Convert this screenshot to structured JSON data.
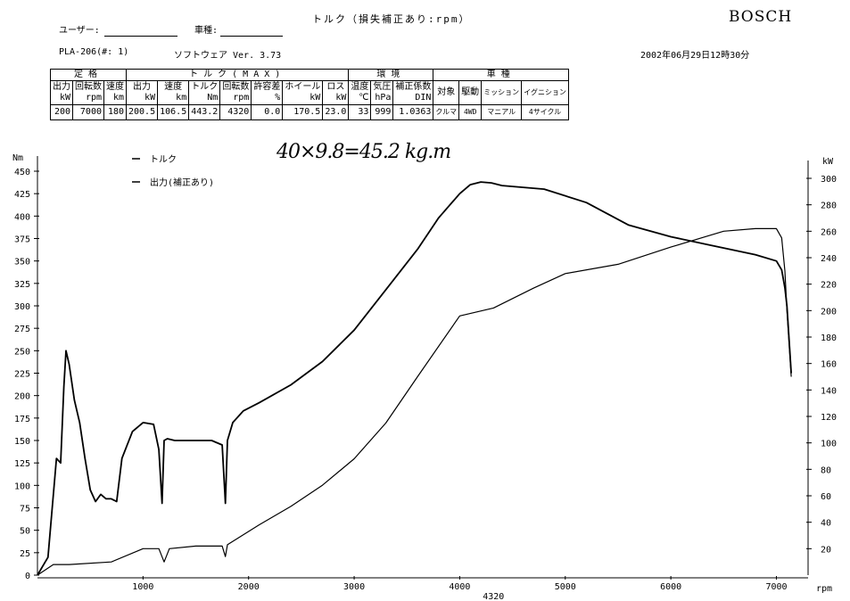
{
  "header": {
    "user_label": "ユーザー:",
    "vehicle_label": "車種:",
    "title": "トルク（損失補正あり:rpm）",
    "brand": "BOSCH",
    "model_code": "PLA-206(#: 1)",
    "software": "ソフトウェア Ver. 3.73",
    "datetime": "2002年06月29日12時30分"
  },
  "spec_table": {
    "groups": [
      "定格",
      "トルク(MAX)",
      "環境",
      "車種"
    ],
    "labels": [
      [
        "出力",
        "kW"
      ],
      [
        "回転数",
        "rpm"
      ],
      [
        "速度",
        "km"
      ],
      [
        "出力",
        "kW"
      ],
      [
        "速度",
        "km"
      ],
      [
        "トルク",
        "Nm"
      ],
      [
        "回転数",
        "rpm"
      ],
      [
        "許容差",
        "%"
      ],
      [
        "ホイール",
        "kW"
      ],
      [
        "ロス",
        "kW"
      ],
      [
        "温度",
        "℃"
      ],
      [
        "気圧",
        "hPa"
      ],
      [
        "補正係数",
        "DIN"
      ],
      [
        "対象",
        ""
      ],
      [
        "駆動",
        ""
      ],
      [
        "ミッション",
        ""
      ],
      [
        "イグニション",
        ""
      ]
    ],
    "values": [
      "200",
      "7000",
      "180",
      "200.5",
      "106.5",
      "443.2",
      "4320",
      "0.0",
      "170.5",
      "23.0",
      "33",
      "999",
      "1.0363",
      "クルマ",
      "4WD",
      "マニアル",
      "4サイクル"
    ]
  },
  "annotation": "40×9.8=45.2 kg.m",
  "chart_data": {
    "type": "line",
    "x_unit": "rpm",
    "left_axis": {
      "unit": "Nm",
      "ticks": [
        0,
        25,
        50,
        75,
        100,
        125,
        150,
        175,
        200,
        225,
        250,
        275,
        300,
        325,
        350,
        375,
        400,
        425,
        450
      ],
      "range": [
        0,
        450
      ]
    },
    "right_axis": {
      "unit": "kW",
      "ticks": [
        20,
        40,
        60,
        80,
        100,
        120,
        140,
        160,
        180,
        200,
        220,
        240,
        260,
        280,
        300
      ],
      "range": [
        0,
        310
      ]
    },
    "x_ticks": [
      1000,
      2000,
      3000,
      4000,
      5000,
      6000,
      7000
    ],
    "x_range": [
      0,
      7300
    ],
    "x_marker": "4320",
    "series": [
      {
        "name": "トルク",
        "axis": "left",
        "x": [
          0,
          100,
          180,
          220,
          250,
          270,
          300,
          350,
          400,
          450,
          500,
          550,
          600,
          650,
          700,
          750,
          800,
          900,
          1000,
          1100,
          1150,
          1180,
          1200,
          1230,
          1300,
          1500,
          1650,
          1750,
          1780,
          1800,
          1850,
          1950,
          2100,
          2400,
          2700,
          3000,
          3300,
          3600,
          3800,
          4000,
          4100,
          4200,
          4300,
          4400,
          4500,
          4800,
          5200,
          5600,
          6000,
          6400,
          6800,
          7000,
          7050,
          7080,
          7100,
          7140
        ],
        "y": [
          0,
          20,
          130,
          125,
          210,
          250,
          235,
          195,
          170,
          130,
          95,
          82,
          90,
          85,
          85,
          82,
          130,
          160,
          170,
          168,
          140,
          80,
          150,
          152,
          150,
          150,
          150,
          145,
          80,
          150,
          170,
          183,
          192,
          212,
          238,
          273,
          318,
          363,
          398,
          425,
          435,
          438,
          437,
          434,
          433,
          430,
          415,
          390,
          377,
          367,
          357,
          350,
          340,
          320,
          300,
          225
        ]
      },
      {
        "name": "出力(補正あり)",
        "axis": "right",
        "x": [
          0,
          150,
          300,
          700,
          1000,
          1150,
          1200,
          1250,
          1500,
          1750,
          1780,
          1800,
          2100,
          2400,
          2700,
          3000,
          3300,
          3600,
          4000,
          4320,
          4700,
          5000,
          5500,
          6000,
          6500,
          6800,
          7000,
          7050,
          7080,
          7100,
          7140
        ],
        "y": [
          0,
          8,
          8,
          10,
          20,
          20,
          10,
          20,
          22,
          22,
          14,
          23,
          38,
          52,
          68,
          88,
          115,
          150,
          196,
          202,
          217,
          228,
          235,
          248,
          260,
          262,
          262,
          255,
          230,
          200,
          150
        ]
      }
    ]
  }
}
